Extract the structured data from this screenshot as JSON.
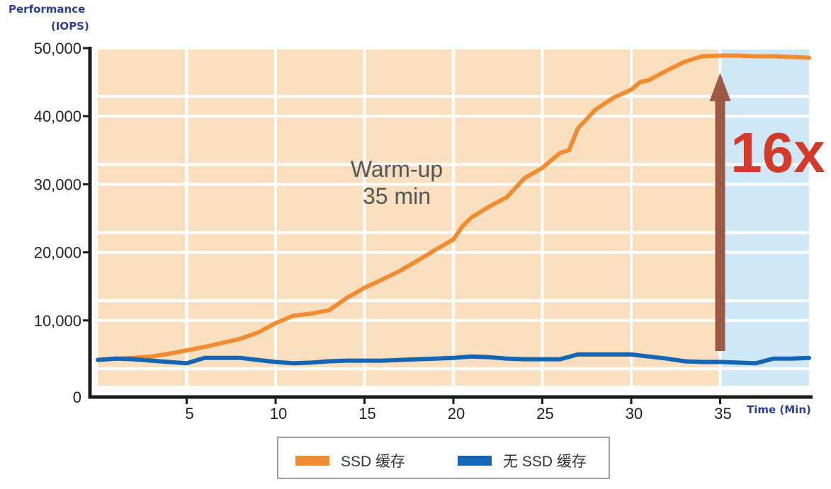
{
  "chart_data": {
    "type": "line",
    "ylabel": [
      "Performance",
      "(IOPS)"
    ],
    "xlabel": "Time (Min)",
    "ylim": [
      0,
      50000
    ],
    "xlim": [
      0,
      40
    ],
    "y_ticks": [
      {
        "value": 0,
        "label": "0"
      },
      {
        "value": 10000,
        "label": "10,000"
      },
      {
        "value": 20000,
        "label": "20,000"
      },
      {
        "value": 30000,
        "label": "30,000"
      },
      {
        "value": 40000,
        "label": "40,000"
      },
      {
        "value": 50000,
        "label": "50,000"
      }
    ],
    "x_ticks": [
      {
        "value": 5,
        "label": "5"
      },
      {
        "value": 10,
        "label": "10"
      },
      {
        "value": 15,
        "label": "15"
      },
      {
        "value": 20,
        "label": "20"
      },
      {
        "value": 25,
        "label": "25"
      },
      {
        "value": 30,
        "label": "30"
      },
      {
        "value": 35,
        "label": "35"
      }
    ],
    "grid": true,
    "regions": [
      {
        "from": 0,
        "to": 35,
        "color": "#f8dfc0"
      },
      {
        "from": 35,
        "to": 40,
        "color": "#cfe7f7"
      }
    ],
    "series": [
      {
        "name": "SSD 缓存",
        "color": "#f08c32",
        "points": [
          [
            0,
            4200
          ],
          [
            1,
            4400
          ],
          [
            2,
            4500
          ],
          [
            3,
            4700
          ],
          [
            4,
            5100
          ],
          [
            5,
            5600
          ],
          [
            6,
            6100
          ],
          [
            7,
            6700
          ],
          [
            8,
            7300
          ],
          [
            9,
            8200
          ],
          [
            10,
            9600
          ],
          [
            11,
            10700
          ],
          [
            12,
            11000
          ],
          [
            13,
            11500
          ],
          [
            14,
            13300
          ],
          [
            15,
            14800
          ],
          [
            16,
            16000
          ],
          [
            17,
            17300
          ],
          [
            18,
            18800
          ],
          [
            19,
            20400
          ],
          [
            20,
            21900
          ],
          [
            20.5,
            23800
          ],
          [
            21,
            25100
          ],
          [
            22,
            26700
          ],
          [
            23,
            28100
          ],
          [
            24,
            30900
          ],
          [
            25,
            32400
          ],
          [
            26,
            34600
          ],
          [
            26.5,
            35000
          ],
          [
            27,
            38200
          ],
          [
            27.5,
            39600
          ],
          [
            28,
            41000
          ],
          [
            29,
            42700
          ],
          [
            30,
            43900
          ],
          [
            30.5,
            45000
          ],
          [
            31,
            45300
          ],
          [
            32,
            46700
          ],
          [
            33,
            48000
          ],
          [
            34,
            48800
          ],
          [
            35,
            48900
          ],
          [
            36,
            48900
          ],
          [
            37,
            48800
          ],
          [
            38,
            48800
          ],
          [
            39,
            48700
          ],
          [
            40,
            48600
          ]
        ]
      },
      {
        "name": "无 SSD 缓存",
        "color": "#1565b5",
        "points": [
          [
            0,
            4200
          ],
          [
            1,
            4400
          ],
          [
            2,
            4300
          ],
          [
            3,
            4100
          ],
          [
            4,
            3900
          ],
          [
            5,
            3700
          ],
          [
            6,
            4500
          ],
          [
            7,
            4500
          ],
          [
            8,
            4500
          ],
          [
            9,
            4200
          ],
          [
            10,
            3900
          ],
          [
            11,
            3700
          ],
          [
            12,
            3800
          ],
          [
            13,
            4000
          ],
          [
            14,
            4100
          ],
          [
            15,
            4100
          ],
          [
            16,
            4100
          ],
          [
            17,
            4200
          ],
          [
            18,
            4300
          ],
          [
            19,
            4400
          ],
          [
            20,
            4500
          ],
          [
            21,
            4700
          ],
          [
            22,
            4600
          ],
          [
            23,
            4400
          ],
          [
            24,
            4300
          ],
          [
            25,
            4300
          ],
          [
            26,
            4300
          ],
          [
            27,
            5000
          ],
          [
            28,
            5000
          ],
          [
            29,
            5000
          ],
          [
            30,
            5000
          ],
          [
            31,
            4700
          ],
          [
            32,
            4400
          ],
          [
            33,
            4000
          ],
          [
            34,
            3900
          ],
          [
            35,
            3900
          ],
          [
            36,
            3800
          ],
          [
            37,
            3700
          ],
          [
            38,
            4400
          ],
          [
            39,
            4400
          ],
          [
            40,
            4500
          ]
        ]
      }
    ],
    "annotations": {
      "phase_text": [
        "Warm-up",
        "35 min"
      ],
      "multiplier_text": "16x",
      "arrow_color": "#9c5a44",
      "multiplier_color": "#d23a2a"
    },
    "legend_position": "bottom-center"
  }
}
